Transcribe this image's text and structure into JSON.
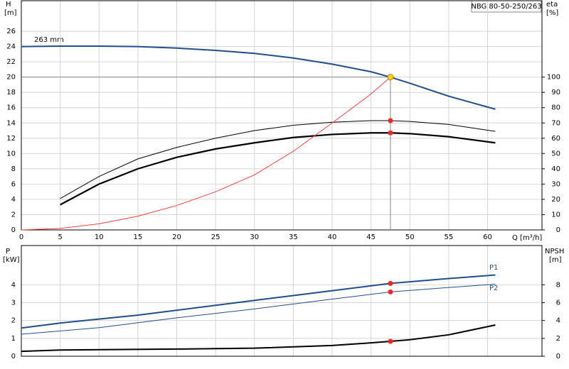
{
  "chart_data": [
    {
      "type": "line",
      "title": "NBG 80-50-250/263",
      "ylabel": "H",
      "yunit": "[m]",
      "y2label": "eta",
      "y2unit": "[%]",
      "xlabel": "Q [m³/h]",
      "xlim": [
        0,
        67
      ],
      "xticks": [
        0,
        5,
        10,
        15,
        20,
        25,
        30,
        35,
        40,
        45,
        50,
        55,
        60
      ],
      "ylim": [
        0,
        30
      ],
      "yticks": [
        0,
        2,
        4,
        6,
        8,
        10,
        12,
        14,
        16,
        18,
        20,
        22,
        24,
        26
      ],
      "y2lim": [
        0,
        150
      ],
      "y2ticks": [
        0,
        10,
        20,
        30,
        40,
        50,
        60,
        70,
        80,
        90,
        100
      ],
      "grid": true,
      "duty_point": {
        "x": 47.5,
        "y": 20
      },
      "series": [
        {
          "name": "263 mm",
          "color": "#1f4e8c",
          "width": 2,
          "x": [
            0,
            5,
            10,
            15,
            20,
            25,
            30,
            35,
            40,
            45,
            47.5,
            50,
            55,
            61
          ],
          "values": [
            24,
            24.05,
            24.05,
            24,
            23.8,
            23.5,
            23.1,
            22.5,
            21.7,
            20.7,
            20,
            19.2,
            17.5,
            15.8
          ]
        },
        {
          "color": "#000000",
          "width": 1,
          "axis": "y2",
          "x": [
            5,
            10,
            15,
            20,
            25,
            30,
            35,
            40,
            45,
            47.5,
            50,
            55,
            61
          ],
          "values": [
            20.5,
            35,
            46.5,
            54,
            60,
            65,
            68.5,
            70.5,
            71.5,
            71.5,
            71,
            69,
            64.5
          ]
        },
        {
          "color": "#000000",
          "width": 2.2,
          "axis": "y2",
          "x": [
            5,
            10,
            15,
            20,
            25,
            30,
            35,
            40,
            45,
            47.5,
            50,
            55,
            61
          ],
          "values": [
            16.5,
            30,
            40,
            47.5,
            53,
            57,
            60.5,
            62.5,
            63.5,
            63.5,
            63,
            61,
            57
          ]
        },
        {
          "color": "#ff3b3b",
          "width": 1,
          "x": [
            0,
            5,
            10,
            15,
            20,
            25,
            30,
            35,
            40,
            45,
            47.5
          ],
          "values": [
            0,
            0.2,
            0.8,
            1.8,
            3.2,
            5,
            7.2,
            10.3,
            14,
            17.8,
            20
          ]
        }
      ]
    },
    {
      "type": "line",
      "ylabel": "P",
      "yunit": "[kW]",
      "y2label": "NPSH",
      "y2unit": "[m]",
      "xlim": [
        0,
        67
      ],
      "ylim": [
        0,
        6.2
      ],
      "yticks": [
        0,
        1,
        2,
        3,
        4
      ],
      "y2lim": [
        0,
        12.4
      ],
      "y2ticks": [
        0,
        2,
        4,
        6,
        8
      ],
      "grid": true,
      "series": [
        {
          "name": "P1",
          "color": "#1f4e8c",
          "width": 2,
          "x": [
            0,
            5,
            15,
            25,
            35,
            47.5,
            55,
            61
          ],
          "values": [
            1.58,
            1.86,
            2.3,
            2.85,
            3.4,
            4.08,
            4.35,
            4.55
          ]
        },
        {
          "name": "P2",
          "color": "#1f4e8c",
          "width": 1,
          "x": [
            0,
            10,
            20,
            30,
            40,
            47.5,
            55,
            61
          ],
          "values": [
            1.23,
            1.6,
            2.15,
            2.65,
            3.2,
            3.6,
            3.85,
            4.04
          ]
        },
        {
          "color": "#000000",
          "width": 2,
          "axis": "y2",
          "x": [
            0,
            5,
            20,
            30,
            40,
            45,
            47.5,
            50,
            55,
            61
          ],
          "values": [
            0.55,
            0.7,
            0.8,
            0.9,
            1.2,
            1.5,
            1.67,
            1.85,
            2.4,
            3.5
          ]
        }
      ]
    }
  ]
}
